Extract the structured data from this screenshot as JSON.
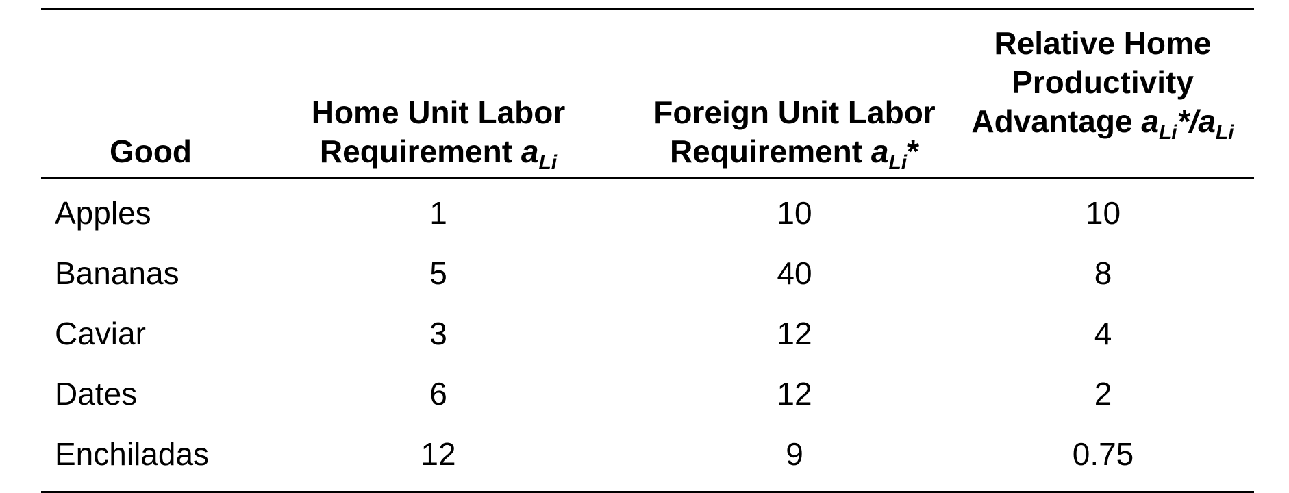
{
  "table": {
    "headers": {
      "good": "Good",
      "home_line1": "Home Unit Labor",
      "home_line2_text": "Requirement ",
      "home_symbol": "a",
      "home_sub": "Li",
      "foreign_line1": "Foreign Unit Labor",
      "foreign_line2_text": "Requirement ",
      "foreign_symbol": "a",
      "foreign_sub": "Li",
      "foreign_star": "*",
      "rel_line1": "Relative Home",
      "rel_line2": "Productivity",
      "rel_line3_text": "Advantage ",
      "rel_symbol_num": "a",
      "rel_sub_num": "Li",
      "rel_star_slash": "*/",
      "rel_symbol_den": "a",
      "rel_sub_den": "Li"
    },
    "rows": [
      {
        "good": "Apples",
        "home": "1",
        "foreign": "10",
        "relative": "10"
      },
      {
        "good": "Bananas",
        "home": "5",
        "foreign": "40",
        "relative": "8"
      },
      {
        "good": "Caviar",
        "home": "3",
        "foreign": "12",
        "relative": "4"
      },
      {
        "good": "Dates",
        "home": "6",
        "foreign": "12",
        "relative": "2"
      },
      {
        "good": "Enchiladas",
        "home": "12",
        "foreign": "9",
        "relative": "0.75"
      }
    ]
  }
}
